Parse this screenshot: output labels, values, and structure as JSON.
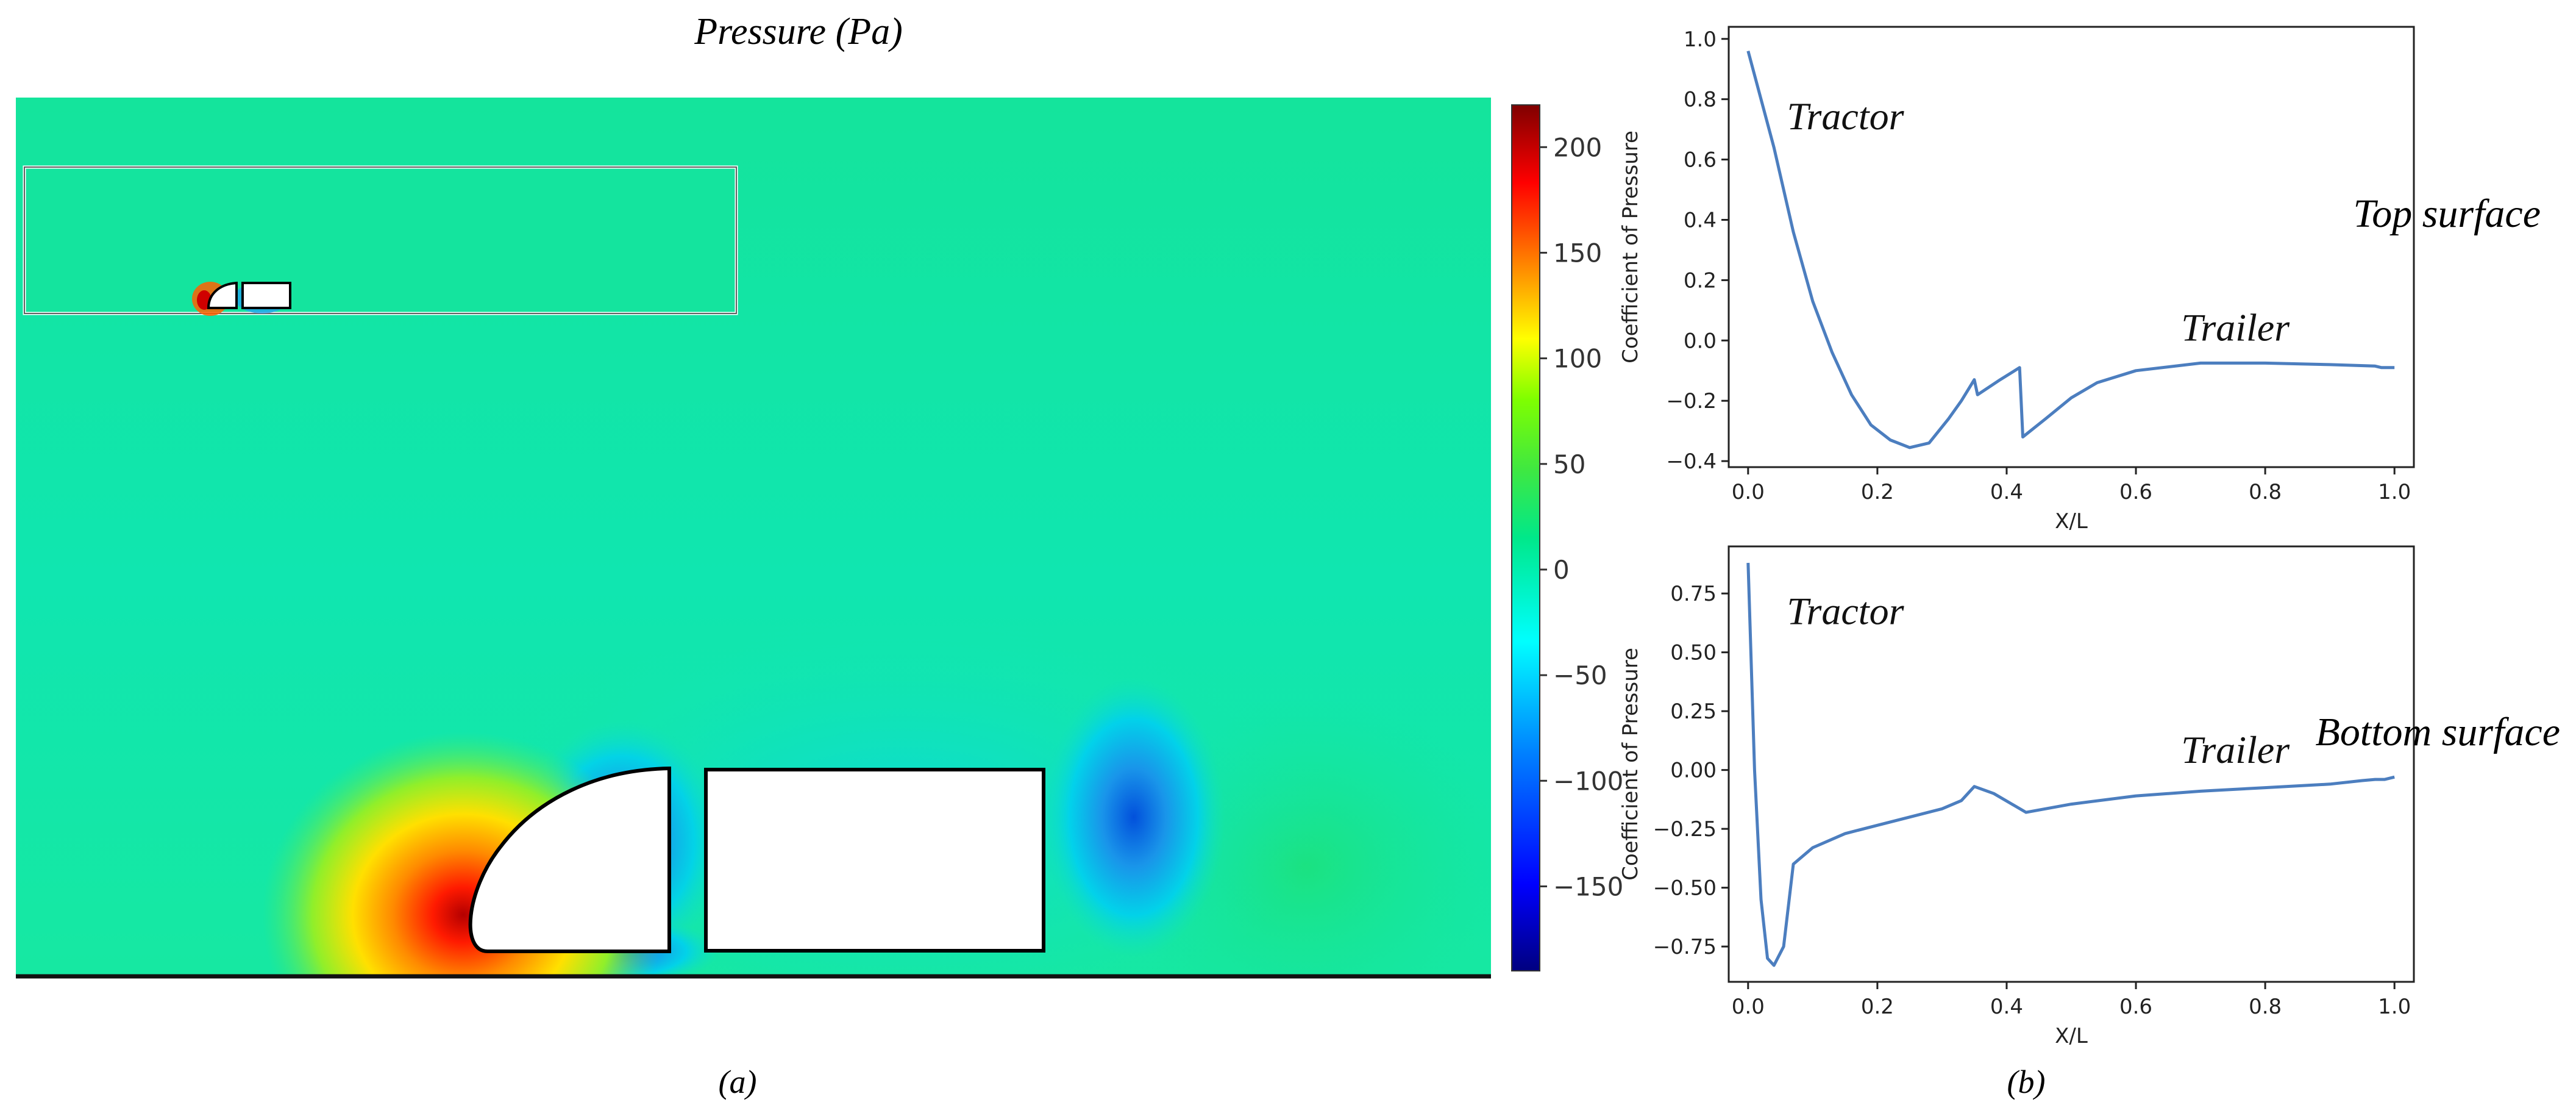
{
  "panel_a": {
    "title": "Pressure (Pa)",
    "caption": "(a)",
    "colorbar": {
      "ticks": [
        200,
        150,
        100,
        50,
        0,
        -50,
        -100,
        -150
      ],
      "range": [
        -190,
        220
      ],
      "colors": [
        "#00007f",
        "#0000ff",
        "#007fff",
        "#00ffff",
        "#00e88a",
        "#7fff00",
        "#ffff00",
        "#ff7f00",
        "#ff0000",
        "#7f0000"
      ]
    }
  },
  "panel_b": {
    "caption": "(b)",
    "top_row_label": "Top surface",
    "bottom_row_label": "Bottom surface"
  },
  "chart_data": [
    {
      "type": "line",
      "xlabel": "X/L",
      "ylabel": "Coefficient of Pressure",
      "xlim": [
        -0.03,
        1.03
      ],
      "ylim": [
        -0.42,
        1.04
      ],
      "xticks": [
        0.0,
        0.2,
        0.4,
        0.6,
        0.8,
        1.0
      ],
      "yticks": [
        1.0,
        0.8,
        0.6,
        0.4,
        0.2,
        0.0,
        -0.2,
        -0.4
      ],
      "tick_labels_x": [
        "0.0",
        "0.2",
        "0.4",
        "0.6",
        "0.8",
        "1.0"
      ],
      "tick_labels_y": [
        "1.0",
        "0.8",
        "0.6",
        "0.4",
        "0.2",
        "0.0",
        "−0.2",
        "−0.4"
      ],
      "annotations": [
        {
          "text": "Tractor",
          "x": 0.06,
          "y": 0.7
        },
        {
          "text": "Trailer",
          "x": 0.67,
          "y": 0.0
        }
      ],
      "series": [
        {
          "color": "#4c7ebf",
          "x": [
            0.0,
            0.02,
            0.04,
            0.07,
            0.1,
            0.13,
            0.16,
            0.19,
            0.22,
            0.25,
            0.28,
            0.31,
            0.33,
            0.35,
            0.355,
            0.39,
            0.42,
            0.425,
            0.46,
            0.5,
            0.54,
            0.6,
            0.7,
            0.8,
            0.9,
            0.97,
            0.98,
            1.0
          ],
          "y": [
            0.96,
            0.8,
            0.64,
            0.36,
            0.13,
            -0.04,
            -0.18,
            -0.28,
            -0.33,
            -0.355,
            -0.34,
            -0.26,
            -0.2,
            -0.13,
            -0.18,
            -0.13,
            -0.09,
            -0.32,
            -0.26,
            -0.19,
            -0.14,
            -0.1,
            -0.075,
            -0.075,
            -0.08,
            -0.085,
            -0.09,
            -0.09
          ]
        }
      ]
    },
    {
      "type": "line",
      "xlabel": "X/L",
      "ylabel": "Coefficient of Pressure",
      "xlim": [
        -0.03,
        1.03
      ],
      "ylim": [
        -0.9,
        0.95
      ],
      "xticks": [
        0.0,
        0.2,
        0.4,
        0.6,
        0.8,
        1.0
      ],
      "yticks": [
        0.75,
        0.5,
        0.25,
        0.0,
        -0.25,
        -0.5,
        -0.75
      ],
      "tick_labels_x": [
        "0.0",
        "0.2",
        "0.4",
        "0.6",
        "0.8",
        "1.0"
      ],
      "tick_labels_y": [
        "0.75",
        "0.50",
        "0.25",
        "0.00",
        "−0.25",
        "−0.50",
        "−0.75"
      ],
      "annotations": [
        {
          "text": "Tractor",
          "x": 0.06,
          "y": 0.62
        },
        {
          "text": "Trailer",
          "x": 0.67,
          "y": 0.03
        }
      ],
      "series": [
        {
          "color": "#4c7ebf",
          "x": [
            0.0,
            0.01,
            0.02,
            0.03,
            0.04,
            0.055,
            0.07,
            0.1,
            0.15,
            0.2,
            0.25,
            0.3,
            0.33,
            0.35,
            0.38,
            0.43,
            0.5,
            0.6,
            0.7,
            0.8,
            0.9,
            0.95,
            0.97,
            0.985,
            1.0
          ],
          "y": [
            0.88,
            0.0,
            -0.55,
            -0.8,
            -0.83,
            -0.75,
            -0.4,
            -0.33,
            -0.27,
            -0.235,
            -0.2,
            -0.165,
            -0.13,
            -0.07,
            -0.1,
            -0.18,
            -0.145,
            -0.11,
            -0.09,
            -0.075,
            -0.06,
            -0.045,
            -0.04,
            -0.04,
            -0.03
          ]
        }
      ]
    }
  ]
}
